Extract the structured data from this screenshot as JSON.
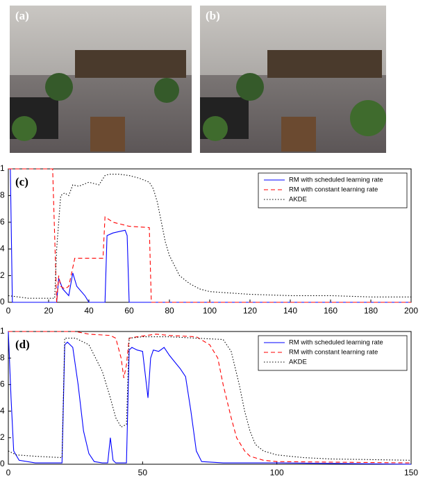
{
  "images": [
    {
      "label": "(a)"
    },
    {
      "label": "(b)"
    }
  ],
  "chart_data": [
    {
      "type": "line",
      "label": "(c)",
      "xlim": [
        0,
        200
      ],
      "xticks": [
        0,
        20,
        40,
        60,
        80,
        100,
        120,
        140,
        160,
        180,
        200
      ],
      "ylim": [
        0,
        1
      ],
      "yticks": [
        0,
        {
          "value": 0.2,
          "label": "2"
        },
        {
          "value": 0.4,
          "label": "4"
        },
        {
          "value": 0.6,
          "label": "6"
        },
        {
          "value": 0.8,
          "label": "8"
        },
        1
      ],
      "legend": "upper right",
      "series": [
        {
          "name": "RM with scheduled learning rate",
          "color": "#0000ff",
          "style": "solid",
          "x": [
            0,
            1,
            2,
            24,
            25,
            27,
            30,
            32,
            34,
            38,
            40,
            48,
            49,
            52,
            55,
            58,
            59,
            60,
            200
          ],
          "values": [
            1,
            1,
            0,
            0,
            0.18,
            0.1,
            0.05,
            0.22,
            0.12,
            0.05,
            0,
            0,
            0.5,
            0.52,
            0.53,
            0.54,
            0.5,
            0,
            0
          ]
        },
        {
          "name": "RM with constant learning rate",
          "color": "#ff0000",
          "style": "dashed",
          "x": [
            0,
            22,
            24,
            25,
            26,
            28,
            30,
            33,
            47,
            48,
            52,
            60,
            70,
            71,
            200
          ],
          "values": [
            1,
            1,
            0,
            0.2,
            0.12,
            0.1,
            0.12,
            0.33,
            0.33,
            0.64,
            0.6,
            0.57,
            0.56,
            0,
            0
          ]
        },
        {
          "name": "AKDE",
          "color": "#000000",
          "style": "dotted",
          "x": [
            0,
            5,
            10,
            20,
            23,
            24,
            26,
            28,
            30,
            32,
            35,
            40,
            45,
            48,
            50,
            55,
            60,
            65,
            70,
            72,
            74,
            76,
            78,
            80,
            85,
            90,
            95,
            100,
            110,
            120,
            140,
            160,
            180,
            200
          ],
          "values": [
            0.05,
            0.04,
            0.03,
            0.03,
            0.03,
            0.4,
            0.8,
            0.82,
            0.8,
            0.88,
            0.87,
            0.9,
            0.88,
            0.95,
            0.96,
            0.96,
            0.95,
            0.93,
            0.9,
            0.85,
            0.75,
            0.6,
            0.45,
            0.35,
            0.2,
            0.14,
            0.1,
            0.08,
            0.07,
            0.06,
            0.05,
            0.05,
            0.04,
            0.04
          ]
        }
      ]
    },
    {
      "type": "line",
      "label": "(d)",
      "xlim": [
        0,
        150
      ],
      "xticks": [
        0,
        50,
        100,
        150
      ],
      "ylim": [
        0,
        1
      ],
      "yticks": [
        0,
        {
          "value": 0.2,
          "label": "2"
        },
        {
          "value": 0.4,
          "label": "4"
        },
        {
          "value": 0.6,
          "label": "6"
        },
        {
          "value": 0.8,
          "label": "8"
        },
        1
      ],
      "legend": "upper right",
      "series": [
        {
          "name": "RM with scheduled learning rate",
          "color": "#0000ff",
          "style": "solid",
          "x": [
            0,
            1,
            2,
            4,
            10,
            20,
            21,
            22,
            24,
            26,
            28,
            30,
            32,
            35,
            37,
            38,
            39,
            40,
            43,
            44,
            45,
            46,
            48,
            50,
            52,
            53,
            54,
            56,
            58,
            60,
            64,
            66,
            68,
            70,
            72,
            80,
            100,
            150
          ],
          "values": [
            1,
            0.5,
            0.1,
            0.03,
            0.01,
            0.01,
            0.9,
            0.92,
            0.88,
            0.6,
            0.25,
            0.08,
            0.02,
            0.01,
            0.01,
            0.2,
            0.03,
            0.01,
            0.01,
            0.01,
            0.86,
            0.88,
            0.86,
            0.85,
            0.5,
            0.8,
            0.86,
            0.85,
            0.88,
            0.82,
            0.72,
            0.66,
            0.4,
            0.1,
            0.02,
            0.01,
            0.01,
            0
          ]
        },
        {
          "name": "RM with constant learning rate",
          "color": "#ff0000",
          "style": "dashed",
          "x": [
            0,
            20,
            25,
            30,
            38,
            40,
            42,
            43,
            44,
            45,
            48,
            55,
            60,
            70,
            75,
            78,
            80,
            83,
            85,
            88,
            90,
            95,
            100,
            150
          ],
          "values": [
            1,
            1,
            1,
            0.98,
            0.97,
            0.95,
            0.8,
            0.65,
            0.75,
            0.95,
            0.96,
            0.98,
            0.97,
            0.96,
            0.9,
            0.8,
            0.6,
            0.35,
            0.2,
            0.1,
            0.06,
            0.03,
            0.02,
            0.01
          ]
        },
        {
          "name": "AKDE",
          "color": "#000000",
          "style": "dotted",
          "x": [
            0,
            3,
            10,
            20,
            21,
            25,
            30,
            35,
            38,
            40,
            42,
            44,
            45,
            50,
            60,
            70,
            80,
            83,
            86,
            88,
            90,
            92,
            95,
            100,
            110,
            120,
            150
          ],
          "values": [
            0.1,
            0.07,
            0.06,
            0.05,
            0.95,
            0.95,
            0.9,
            0.7,
            0.5,
            0.35,
            0.28,
            0.3,
            0.95,
            0.96,
            0.96,
            0.95,
            0.94,
            0.85,
            0.6,
            0.4,
            0.25,
            0.15,
            0.1,
            0.07,
            0.05,
            0.04,
            0.03
          ]
        }
      ]
    }
  ]
}
